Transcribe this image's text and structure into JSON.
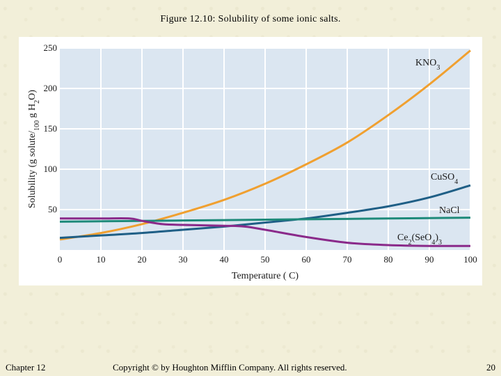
{
  "slide": {
    "title": "Figure 12.10: Solubility of some ionic salts.",
    "footer_left": "Chapter 12",
    "footer_center": "Copyright © by Houghton Mifflin Company. All rights reserved.",
    "footer_right": "20"
  },
  "chart_data": {
    "type": "line",
    "xlabel": "Temperature ( C)",
    "ylabel": "Solubility (g solute/100 g H2O)",
    "xlim": [
      0,
      100
    ],
    "ylim": [
      0,
      250
    ],
    "xticks": [
      0,
      10,
      20,
      30,
      40,
      50,
      60,
      70,
      80,
      90,
      100
    ],
    "yticks": [
      50,
      100,
      150,
      200,
      250
    ],
    "grid": true,
    "background_color": "#dbe6f1",
    "series": [
      {
        "name": "KNO3",
        "color": "#f0a030",
        "x": [
          0,
          10,
          20,
          30,
          40,
          50,
          60,
          70,
          80,
          90,
          100
        ],
        "y": [
          13,
          21,
          32,
          46,
          62,
          82,
          106,
          133,
          167,
          205,
          247
        ]
      },
      {
        "name": "CuSO4",
        "color": "#1f5f86",
        "x": [
          0,
          10,
          20,
          30,
          40,
          50,
          60,
          70,
          80,
          90,
          100
        ],
        "y": [
          15,
          18,
          21,
          25,
          29,
          34,
          39,
          46,
          54,
          65,
          80
        ]
      },
      {
        "name": "NaCl",
        "color": "#1e8a7a",
        "x": [
          0,
          20,
          40,
          60,
          80,
          100
        ],
        "y": [
          35,
          36,
          37,
          38,
          39,
          40
        ]
      },
      {
        "name": "Ce2(SeO4)3",
        "color": "#8a2a8a",
        "x": [
          0,
          10,
          17,
          20,
          25,
          30,
          40,
          45,
          50,
          60,
          70,
          80,
          90,
          100
        ],
        "y": [
          39,
          39,
          39,
          36,
          32,
          31,
          30,
          29,
          25,
          16,
          9,
          6,
          5,
          5
        ]
      }
    ]
  }
}
